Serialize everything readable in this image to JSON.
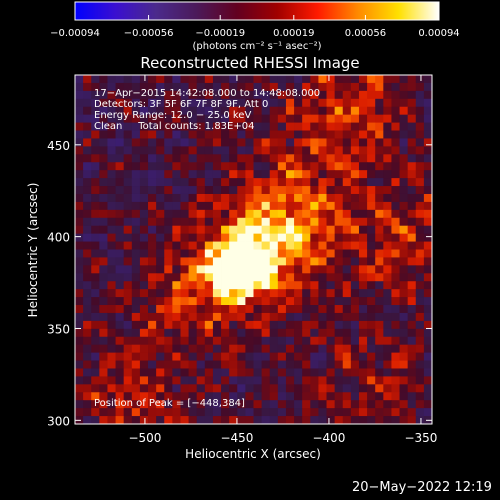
{
  "chart_data": {
    "type": "heatmap",
    "title": "Reconstructed RHESSI Image",
    "xlabel": "Heliocentric X (arcsec)",
    "ylabel": "Heliocentric Y (arcsec)",
    "xlim": [
      -538,
      -344
    ],
    "ylim": [
      298,
      488
    ],
    "x_ticks": [
      -500,
      -450,
      -400,
      -350
    ],
    "y_ticks": [
      300,
      350,
      400,
      450
    ],
    "x_tick_labels": [
      "−500",
      "−450",
      "−400",
      "−350"
    ],
    "y_tick_labels": [
      "300",
      "350",
      "400",
      "450"
    ],
    "colorbar": {
      "range": [
        -0.00094,
        0.00094
      ],
      "ticks": [
        -0.00094,
        -0.00056,
        -0.00019,
        0.00019,
        0.00056,
        0.00094
      ],
      "tick_labels": [
        "−0.00094",
        "−0.00056",
        "−0.00019",
        "0.00019",
        "0.00056",
        "0.00094"
      ],
      "label": "(photons cm⁻² s⁻¹ asec⁻²)",
      "colors": [
        "#0000ff",
        "#3a0fd0",
        "#4b2a8c",
        "#4b1a5a",
        "#620020",
        "#a00000",
        "#ff1a00",
        "#ff8a00",
        "#ffe000",
        "#ffffff"
      ]
    },
    "annotations": {
      "time_range": "17−Apr−2015 14:42:08.000 to 14:48:08.000",
      "detectors": "Detectors: 3F 5F 6F 7F 8F 9F, Att 0",
      "energy_range": "Energy Range: 12.0 − 25.0 keV",
      "clean_counts": "Clean     Total counts: 1.83E+04",
      "peak_position": "Position of Peak = [−448,384]"
    },
    "peak": [
      -448,
      384
    ],
    "sources": [
      {
        "x": -448,
        "y": 384,
        "level": 1.0
      },
      {
        "x": -430,
        "y": 395,
        "level": 0.5
      },
      {
        "x": -475,
        "y": 370,
        "level": 0.4
      },
      {
        "x": -420,
        "y": 420,
        "level": 0.35
      },
      {
        "x": -390,
        "y": 470,
        "level": 0.4
      },
      {
        "x": -360,
        "y": 400,
        "level": 0.35
      },
      {
        "x": -510,
        "y": 310,
        "level": 0.3
      },
      {
        "x": -380,
        "y": 320,
        "level": 0.25
      }
    ]
  },
  "footer": {
    "timestamp": "20−May−2022 12:19"
  }
}
